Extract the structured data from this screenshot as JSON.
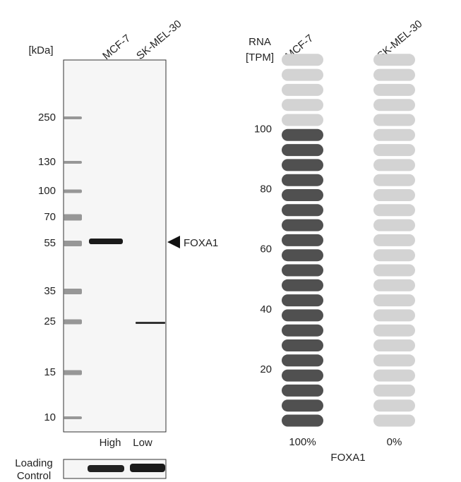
{
  "western_blot": {
    "unit_label": "[kDa]",
    "lanes": [
      "MCF-7",
      "SK-MEL-30"
    ],
    "markers": [
      250,
      130,
      100,
      70,
      55,
      35,
      25,
      15,
      10
    ],
    "target": "FOXA1",
    "levels": [
      "High",
      "Low"
    ],
    "loading_control": [
      "Loading",
      "Control"
    ]
  },
  "chart_data": {
    "type": "pill",
    "axis_label": [
      "RNA",
      "[TPM]"
    ],
    "categories": [
      "MCF-7",
      "SK-MEL-30"
    ],
    "values": [
      100,
      0
    ],
    "value_labels": [
      "100%",
      "0%"
    ],
    "ylim": [
      0,
      125
    ],
    "yticks": [
      20,
      40,
      60,
      80,
      100
    ],
    "xlabel": "FOXA1",
    "color": "#505050",
    "empty_color": "#d3d3d3"
  }
}
